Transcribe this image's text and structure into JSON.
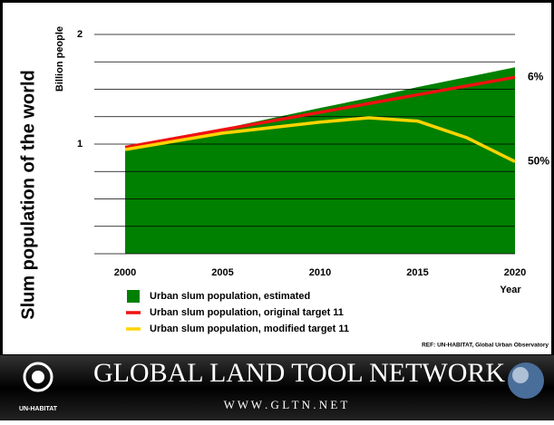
{
  "chart_data": {
    "type": "area-line",
    "title": "Slum population of the world",
    "y_label": "Billion people",
    "x_label": "Year",
    "x": [
      2000,
      2005,
      2010,
      2012.5,
      2015,
      2017.5,
      2020
    ],
    "series": [
      {
        "name": "Urban slum population, estimated",
        "color": "#008000",
        "kind": "area",
        "values": [
          0.95,
          1.14,
          1.33,
          1.42,
          1.52,
          1.61,
          1.7
        ]
      },
      {
        "name": "Urban slum population, original target 11",
        "color": "#ee1111",
        "kind": "line",
        "values": [
          0.97,
          1.13,
          1.29,
          1.37,
          1.45,
          1.53,
          1.61
        ]
      },
      {
        "name": "Urban slum population, modified target 11",
        "color": "#ffd400",
        "kind": "line",
        "values": [
          0.95,
          1.1,
          1.2,
          1.24,
          1.21,
          1.06,
          0.84
        ]
      }
    ],
    "annotations": [
      {
        "text": "6%",
        "series": 1
      },
      {
        "text": "50%",
        "series": 2
      }
    ],
    "xlim": [
      2000,
      2020
    ],
    "xticks": [
      2000,
      2005,
      2010,
      2015,
      2020
    ],
    "ylim": [
      0,
      2
    ],
    "yticks": [
      1,
      2
    ],
    "grid": true,
    "grid_step": 0.25,
    "reference": "REF: UN-HABITAT, Global Urban Observatory"
  },
  "banner": {
    "title": "GLOBAL LAND TOOL NETWORK",
    "url": "W W W . G L T N . N E T",
    "logo": "UN-HABITAT"
  }
}
